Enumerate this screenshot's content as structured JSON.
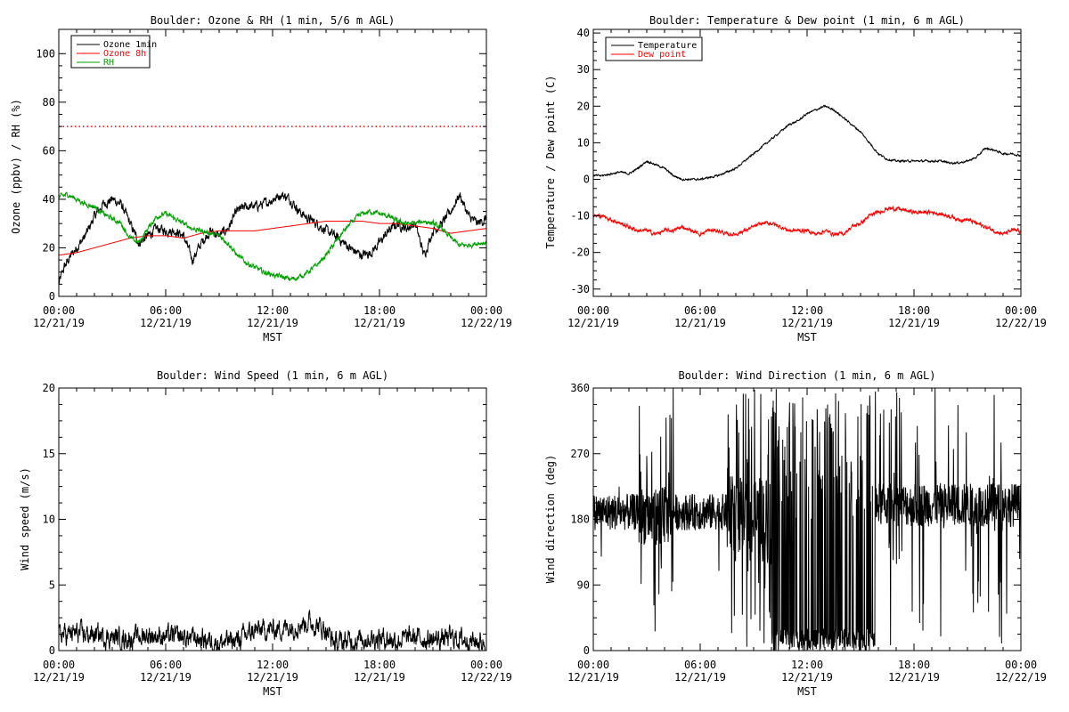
{
  "colors": {
    "black": "#000000",
    "red": "#ff0000",
    "green": "#00a000",
    "background": "#ffffff"
  },
  "x_axis": {
    "label": "MST",
    "ticks": [
      {
        "hours": 0,
        "time": "00:00",
        "date": "12/21/19"
      },
      {
        "hours": 6,
        "time": "06:00",
        "date": "12/21/19"
      },
      {
        "hours": 12,
        "time": "12:00",
        "date": "12/21/19"
      },
      {
        "hours": 18,
        "time": "18:00",
        "date": "12/21/19"
      },
      {
        "hours": 24,
        "time": "00:00",
        "date": "12/22/19"
      }
    ]
  },
  "chart_data": [
    {
      "id": "ozone",
      "type": "line",
      "title": "Boulder: Ozone & RH (1 min, 5/6 m AGL)",
      "ylabel": "Ozone (ppbv) / RH (%)",
      "xlim": [
        0,
        24
      ],
      "ylim": [
        0,
        110
      ],
      "yticks": [
        0,
        20,
        40,
        60,
        80,
        100
      ],
      "legend_position": "top-left",
      "reference_line": {
        "y": 70,
        "style": "dotted",
        "color": "#ff0000"
      },
      "series": [
        {
          "name": "Ozone 1min",
          "color": "#000000",
          "noise": 1.5,
          "x": [
            0,
            0.3,
            0.7,
            1,
            1.5,
            2,
            2.5,
            3,
            3.5,
            4,
            4.5,
            5,
            5.5,
            6,
            6.5,
            7,
            7.5,
            8,
            8.5,
            9,
            9.5,
            10,
            10.5,
            11,
            11.5,
            12,
            12.5,
            13,
            13.5,
            14,
            14.5,
            15,
            15.5,
            16,
            16.5,
            17,
            17.5,
            18,
            18.5,
            19,
            19.5,
            20,
            20.5,
            21,
            21.5,
            22,
            22.5,
            23,
            23.5,
            24
          ],
          "y": [
            5,
            12,
            17,
            20,
            25,
            33,
            38,
            40,
            38,
            30,
            22,
            25,
            28,
            27,
            27,
            25,
            15,
            22,
            27,
            25,
            28,
            35,
            37,
            37,
            38,
            40,
            42,
            40,
            35,
            32,
            30,
            27,
            25,
            22,
            19,
            17,
            18,
            22,
            27,
            30,
            28,
            30,
            17,
            27,
            30,
            35,
            42,
            33,
            30,
            32
          ]
        },
        {
          "name": "Ozone 8h",
          "color": "#ff0000",
          "noise": 0,
          "x": [
            0,
            1,
            2,
            3,
            4,
            5,
            6,
            7,
            8,
            9,
            10,
            11,
            12,
            13,
            14,
            15,
            16,
            17,
            18,
            19,
            20,
            21,
            22,
            23,
            24
          ],
          "y": [
            17,
            18,
            20,
            22,
            24,
            25,
            25,
            24,
            26,
            27,
            27,
            27,
            28,
            29,
            30,
            31,
            31,
            31,
            30,
            30,
            29,
            28,
            26,
            27,
            28
          ]
        },
        {
          "name": "RH",
          "color": "#00a000",
          "noise": 0.8,
          "x": [
            0,
            0.5,
            1,
            1.5,
            2,
            2.5,
            3,
            3.5,
            4,
            4.5,
            5,
            5.5,
            6,
            6.5,
            7,
            7.5,
            8,
            8.5,
            9,
            9.5,
            10,
            10.5,
            11,
            11.5,
            12,
            12.5,
            13,
            13.5,
            14,
            14.5,
            15,
            15.5,
            16,
            16.5,
            17,
            17.5,
            18,
            18.5,
            19,
            19.5,
            20,
            20.5,
            21,
            21.5,
            22,
            22.5,
            23,
            23.5,
            24
          ],
          "y": [
            41,
            42,
            40,
            38,
            37,
            34,
            32,
            30,
            24,
            22,
            28,
            33,
            34,
            32,
            30,
            28,
            27,
            26,
            25,
            22,
            17,
            14,
            12,
            10,
            9,
            8,
            7,
            8,
            10,
            13,
            17,
            22,
            27,
            31,
            34,
            35,
            34,
            33,
            31,
            30,
            30,
            31,
            30,
            28,
            24,
            21,
            21,
            22,
            22
          ]
        }
      ]
    },
    {
      "id": "temperature",
      "type": "line",
      "title": "Boulder: Temperature & Dew point (1 min, 6 m AGL)",
      "ylabel": "Temperature / Dew point (C)",
      "xlim": [
        0,
        24
      ],
      "ylim": [
        -32,
        41
      ],
      "yticks": [
        -30,
        -20,
        -10,
        0,
        10,
        20,
        30,
        40
      ],
      "legend_position": "top-left",
      "series": [
        {
          "name": "Temperature",
          "color": "#000000",
          "noise": 0.2,
          "x": [
            0,
            0.5,
            1,
            1.5,
            2,
            2.5,
            3,
            3.5,
            4,
            4.5,
            5,
            5.5,
            6,
            6.5,
            7,
            7.5,
            8,
            8.5,
            9,
            9.5,
            10,
            10.5,
            11,
            11.5,
            12,
            12.5,
            13,
            13.5,
            14,
            14.5,
            15,
            15.5,
            16,
            16.5,
            17,
            17.5,
            18,
            18.5,
            19,
            19.5,
            20,
            20.5,
            21,
            21.5,
            22,
            22.5,
            23,
            23.5,
            24
          ],
          "y": [
            1,
            1,
            1.5,
            2,
            1.5,
            3,
            5,
            4,
            3,
            1,
            0,
            0,
            0,
            0.5,
            1,
            2,
            3,
            5,
            7,
            9,
            11,
            13,
            15,
            16,
            18,
            19,
            20,
            19,
            17,
            15,
            13,
            10,
            7,
            5.5,
            5,
            5,
            5,
            5,
            5,
            5,
            4.5,
            4.5,
            5,
            6,
            8.5,
            8,
            7,
            7,
            6.5
          ]
        },
        {
          "name": "Dew point",
          "color": "#ff0000",
          "noise": 0.4,
          "x": [
            0,
            0.5,
            1,
            1.5,
            2,
            2.5,
            3,
            3.5,
            4,
            4.5,
            5,
            5.5,
            6,
            6.5,
            7,
            7.5,
            8,
            8.5,
            9,
            9.5,
            10,
            10.5,
            11,
            11.5,
            12,
            12.5,
            13,
            13.5,
            14,
            14.5,
            15,
            15.5,
            16,
            16.5,
            17,
            17.5,
            18,
            18.5,
            19,
            19.5,
            20,
            20.5,
            21,
            21.5,
            22,
            22.5,
            23,
            23.5,
            24
          ],
          "y": [
            -10,
            -10,
            -11,
            -12,
            -13,
            -14,
            -14,
            -15,
            -14,
            -14,
            -13,
            -14,
            -15,
            -14,
            -14,
            -15,
            -15,
            -14,
            -13,
            -12,
            -12,
            -13,
            -14,
            -14,
            -14,
            -15,
            -14,
            -15,
            -15,
            -13,
            -12,
            -10,
            -9,
            -8,
            -8,
            -8.5,
            -9,
            -9,
            -9,
            -9.5,
            -10,
            -11,
            -11,
            -12,
            -13,
            -14,
            -15,
            -14,
            -14
          ]
        }
      ]
    },
    {
      "id": "windspeed",
      "type": "line",
      "title": "Boulder: Wind Speed (1 min, 6 m AGL)",
      "ylabel": "Wind speed (m/s)",
      "xlim": [
        0,
        24
      ],
      "ylim": [
        0,
        20
      ],
      "yticks": [
        0,
        5,
        10,
        15,
        20
      ],
      "series": [
        {
          "name": "Wind speed",
          "color": "#000000",
          "noise": 0.6,
          "x": [
            0,
            1,
            2,
            3,
            4,
            5,
            6,
            7,
            8,
            9,
            10,
            11,
            12,
            13,
            14,
            15,
            15.5,
            16,
            17,
            18,
            19,
            20,
            21,
            22,
            23,
            24
          ],
          "y": [
            1.2,
            1.3,
            1.2,
            1,
            0.9,
            1.2,
            1.1,
            1,
            0.9,
            0.6,
            0.8,
            1.5,
            1.6,
            1.8,
            2.2,
            1.6,
            0.5,
            0.7,
            0.9,
            1.0,
            0.8,
            1.0,
            0.8,
            1.0,
            0.8,
            0.6
          ]
        }
      ]
    },
    {
      "id": "winddir",
      "type": "line",
      "title": "Boulder: Wind Direction (1 min, 6 m AGL)",
      "ylabel": "Wind direction (deg)",
      "xlabel": "MST",
      "xlim": [
        0,
        24
      ],
      "ylim": [
        0,
        360
      ],
      "yticks": [
        0,
        90,
        180,
        270,
        360
      ],
      "segments": [
        {
          "from": 0,
          "to": 2.5,
          "base": 190,
          "spread": 25,
          "jump_prob": 0.02
        },
        {
          "from": 2.5,
          "to": 4.5,
          "base": 185,
          "spread": 40,
          "jump_prob": 0.25
        },
        {
          "from": 4.5,
          "to": 7.5,
          "base": 190,
          "spread": 25,
          "jump_prob": 0.03
        },
        {
          "from": 7.5,
          "to": 10,
          "base": 180,
          "spread": 60,
          "jump_prob": 0.3
        },
        {
          "from": 10,
          "to": 15.8,
          "base": 15,
          "spread": 15,
          "jump_prob": 0.3
        },
        {
          "from": 15.8,
          "to": 24,
          "base": 200,
          "spread": 30,
          "jump_prob": 0.15
        }
      ]
    }
  ]
}
